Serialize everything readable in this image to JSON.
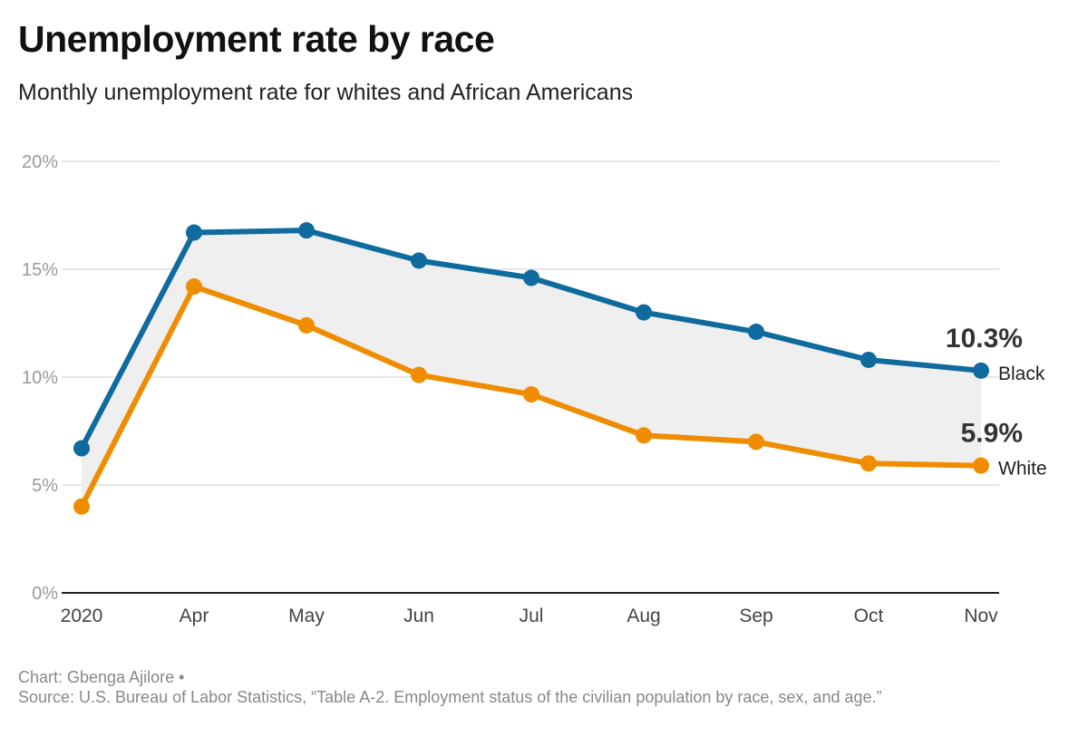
{
  "header": {
    "title": "Unemployment rate by race",
    "subtitle": "Monthly unemployment rate for whites and African Americans"
  },
  "chart_data": {
    "type": "line",
    "categories": [
      "2020",
      "Apr",
      "May",
      "Jun",
      "Jul",
      "Aug",
      "Sep",
      "Oct",
      "Nov"
    ],
    "y_ticks": [
      "0%",
      "5%",
      "10%",
      "15%",
      "20%"
    ],
    "ylim": [
      0,
      20
    ],
    "grid": true,
    "series": [
      {
        "name": "Black",
        "color": "#0f6a9e",
        "values": [
          6.7,
          16.7,
          16.8,
          15.4,
          14.6,
          13.0,
          12.1,
          10.8,
          10.3
        ],
        "end_label": "10.3%"
      },
      {
        "name": "White",
        "color": "#f08c00",
        "values": [
          4.0,
          14.2,
          12.4,
          10.1,
          9.2,
          7.3,
          7.0,
          6.0,
          5.9
        ],
        "end_label": "5.9%"
      }
    ],
    "fill_between_color": "#efefef"
  },
  "footer": {
    "credit": "Chart: Gbenga Ajilore •",
    "source": "Source: U.S. Bureau of Labor Statistics, “Table A-2. Employment status of the civilian population by race, sex, and age.”"
  }
}
